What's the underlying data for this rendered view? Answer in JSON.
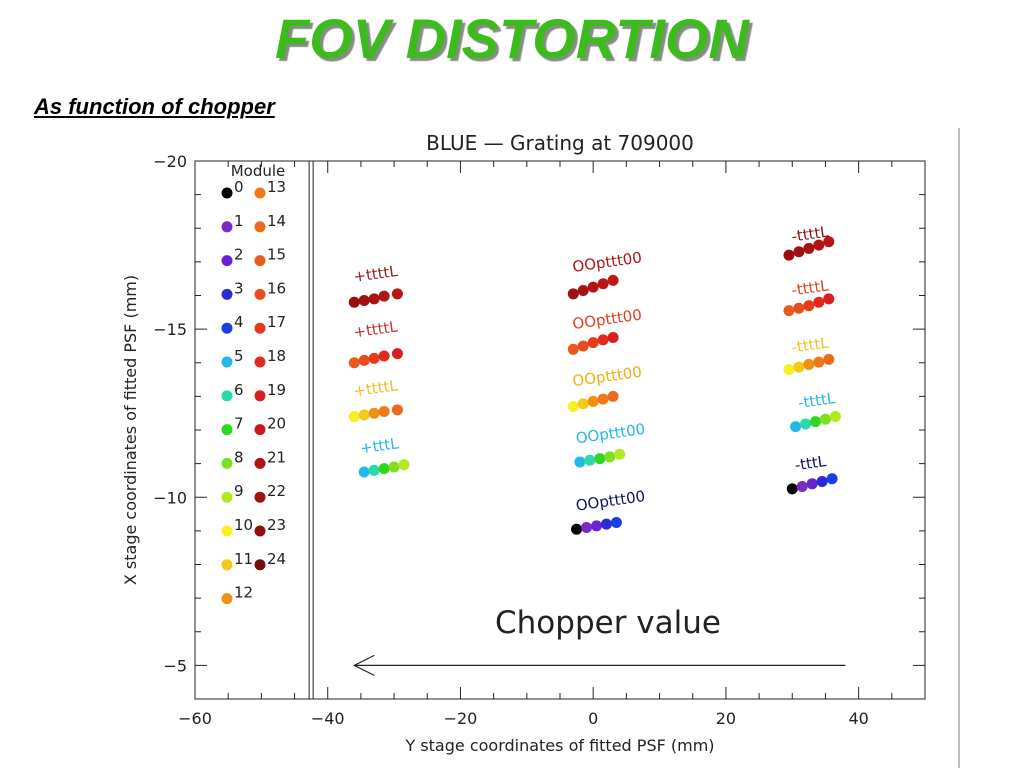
{
  "slide": {
    "title": "FOV DISTORTION",
    "subtitle": "As function of chopper",
    "title_color": "#3cbc1c"
  },
  "chart_data": {
    "type": "scatter",
    "title": "BLUE — Grating at 709000",
    "xlabel": "Y stage coordinates of fitted PSF (mm)",
    "ylabel": "X stage coordinates of fitted PSF (mm)",
    "xlim": [
      -60,
      50
    ],
    "ylim": [
      -20,
      -4
    ],
    "y_inverted": true,
    "x_ticks": [
      -60,
      -40,
      -20,
      0,
      20,
      40
    ],
    "x_tick_labels": [
      "−60",
      "−40",
      "−20",
      "0",
      "20",
      "40"
    ],
    "y_ticks": [
      -20,
      -15,
      -10,
      -5
    ],
    "y_tick_labels": [
      "−20",
      "−15",
      "−10",
      "−5"
    ],
    "separator_x": -42.5,
    "annotation": {
      "text": "Chopper value",
      "arrow": {
        "from_x": 38,
        "to_x": -36,
        "y": -5
      }
    },
    "legend": {
      "title": "Module",
      "placement": "left",
      "entries": [
        {
          "label": "0",
          "color": "#000000"
        },
        {
          "label": "1",
          "color": "#7a2bc4"
        },
        {
          "label": "2",
          "color": "#6a22d0"
        },
        {
          "label": "3",
          "color": "#2a2ad8"
        },
        {
          "label": "4",
          "color": "#1a3ee8"
        },
        {
          "label": "5",
          "color": "#22b8e8"
        },
        {
          "label": "6",
          "color": "#2ad8a8"
        },
        {
          "label": "7",
          "color": "#2ad820"
        },
        {
          "label": "8",
          "color": "#7ae020"
        },
        {
          "label": "9",
          "color": "#b4e820"
        },
        {
          "label": "10",
          "color": "#f8f020"
        },
        {
          "label": "11",
          "color": "#f4c818"
        },
        {
          "label": "12",
          "color": "#f09010"
        },
        {
          "label": "13",
          "color": "#f07818"
        },
        {
          "label": "14",
          "color": "#ec6a1e"
        },
        {
          "label": "15",
          "color": "#ea5a1c"
        },
        {
          "label": "16",
          "color": "#e84c1c"
        },
        {
          "label": "17",
          "color": "#e83a18"
        },
        {
          "label": "18",
          "color": "#e02a1c"
        },
        {
          "label": "19",
          "color": "#d81e1e"
        },
        {
          "label": "20",
          "color": "#c81818"
        },
        {
          "label": "21",
          "color": "#b01414"
        },
        {
          "label": "22",
          "color": "#a01212"
        },
        {
          "label": "23",
          "color": "#901010"
        },
        {
          "label": "24",
          "color": "#7a0c0c"
        }
      ]
    },
    "groups": [
      {
        "label_text": "+ttttL",
        "label_color": "#9a2020",
        "label_x": -36,
        "label_y": -16.4,
        "points": [
          {
            "x": -36,
            "y": -15.8,
            "c": "#9a0c0c"
          },
          {
            "x": -34.5,
            "y": -15.85,
            "c": "#a01010"
          },
          {
            "x": -33,
            "y": -15.9,
            "c": "#a81212"
          },
          {
            "x": -31.5,
            "y": -15.98,
            "c": "#b01414"
          },
          {
            "x": -29.5,
            "y": -16.05,
            "c": "#b81616"
          }
        ]
      },
      {
        "label_text": "+ttttL",
        "label_color": "#c83030",
        "label_x": -36,
        "label_y": -14.75,
        "points": [
          {
            "x": -36,
            "y": -14.0,
            "c": "#ea5a1c"
          },
          {
            "x": -34.5,
            "y": -14.07,
            "c": "#e84c1c"
          },
          {
            "x": -33,
            "y": -14.13,
            "c": "#e83a18"
          },
          {
            "x": -31.5,
            "y": -14.2,
            "c": "#e02a1c"
          },
          {
            "x": -29.5,
            "y": -14.27,
            "c": "#d81e1e"
          }
        ]
      },
      {
        "label_text": "+ttttL",
        "label_color": "#f0c020",
        "label_x": -36,
        "label_y": -13.0,
        "points": [
          {
            "x": -36,
            "y": -12.4,
            "c": "#f8f020"
          },
          {
            "x": -34.5,
            "y": -12.45,
            "c": "#f4c818"
          },
          {
            "x": -33,
            "y": -12.5,
            "c": "#f09010"
          },
          {
            "x": -31.5,
            "y": -12.55,
            "c": "#f07818"
          },
          {
            "x": -29.5,
            "y": -12.6,
            "c": "#ec6a1e"
          }
        ]
      },
      {
        "label_text": "+tttL",
        "label_color": "#22b8e8",
        "label_x": -35,
        "label_y": -11.3,
        "points": [
          {
            "x": -34.5,
            "y": -10.75,
            "c": "#22b8e8"
          },
          {
            "x": -33,
            "y": -10.8,
            "c": "#2ad8a8"
          },
          {
            "x": -31.5,
            "y": -10.85,
            "c": "#2ad820"
          },
          {
            "x": -30,
            "y": -10.9,
            "c": "#7ae020"
          },
          {
            "x": -28.5,
            "y": -10.97,
            "c": "#b4e820"
          }
        ]
      },
      {
        "label_text": "OOpttt00",
        "label_color": "#b01414",
        "label_x": -3,
        "label_y": -16.7,
        "points": [
          {
            "x": -3,
            "y": -16.05,
            "c": "#a01010"
          },
          {
            "x": -1.5,
            "y": -16.15,
            "c": "#a81212"
          },
          {
            "x": 0,
            "y": -16.25,
            "c": "#b01414"
          },
          {
            "x": 1.5,
            "y": -16.35,
            "c": "#b81616"
          },
          {
            "x": 3,
            "y": -16.45,
            "c": "#c01818"
          }
        ]
      },
      {
        "label_text": "OOpttt00",
        "label_color": "#e04020",
        "label_x": -3,
        "label_y": -15.0,
        "points": [
          {
            "x": -3,
            "y": -14.4,
            "c": "#ea5a1c"
          },
          {
            "x": -1.5,
            "y": -14.5,
            "c": "#e84c1c"
          },
          {
            "x": 0,
            "y": -14.6,
            "c": "#e83a18"
          },
          {
            "x": 1.5,
            "y": -14.68,
            "c": "#e02a1c"
          },
          {
            "x": 3,
            "y": -14.75,
            "c": "#d81e1e"
          }
        ]
      },
      {
        "label_text": "OOpttt00",
        "label_color": "#f0b010",
        "label_x": -3,
        "label_y": -13.3,
        "points": [
          {
            "x": -3,
            "y": -12.7,
            "c": "#f8f020"
          },
          {
            "x": -1.5,
            "y": -12.78,
            "c": "#f4c818"
          },
          {
            "x": 0,
            "y": -12.85,
            "c": "#f09010"
          },
          {
            "x": 1.5,
            "y": -12.92,
            "c": "#f07818"
          },
          {
            "x": 3,
            "y": -13.0,
            "c": "#ec6a1e"
          }
        ]
      },
      {
        "label_text": "OOpttt00",
        "label_color": "#22b8e8",
        "label_x": -2.5,
        "label_y": -11.6,
        "points": [
          {
            "x": -2,
            "y": -11.05,
            "c": "#22b8e8"
          },
          {
            "x": -0.5,
            "y": -11.1,
            "c": "#2ad8a8"
          },
          {
            "x": 1,
            "y": -11.15,
            "c": "#2ad820"
          },
          {
            "x": 2.5,
            "y": -11.2,
            "c": "#7ae020"
          },
          {
            "x": 4,
            "y": -11.28,
            "c": "#b4e820"
          }
        ]
      },
      {
        "label_text": "OOpttt00",
        "label_color": "#101060",
        "label_x": -2.5,
        "label_y": -9.6,
        "points": [
          {
            "x": -2.5,
            "y": -9.05,
            "c": "#000000"
          },
          {
            "x": -1,
            "y": -9.1,
            "c": "#7a2bc4"
          },
          {
            "x": 0.5,
            "y": -9.15,
            "c": "#6a22d0"
          },
          {
            "x": 2,
            "y": -9.2,
            "c": "#2a2ad8"
          },
          {
            "x": 3.5,
            "y": -9.25,
            "c": "#1a3ee8"
          }
        ]
      },
      {
        "label_text": "-ttttL",
        "label_color": "#901010",
        "label_x": 30,
        "label_y": -17.6,
        "points": [
          {
            "x": 29.5,
            "y": -17.2,
            "c": "#9a0c0c"
          },
          {
            "x": 31,
            "y": -17.3,
            "c": "#a01010"
          },
          {
            "x": 32.5,
            "y": -17.4,
            "c": "#a81212"
          },
          {
            "x": 34,
            "y": -17.5,
            "c": "#b01414"
          },
          {
            "x": 35.5,
            "y": -17.6,
            "c": "#b81616"
          }
        ]
      },
      {
        "label_text": "-ttttL",
        "label_color": "#e04020",
        "label_x": 30,
        "label_y": -16.0,
        "points": [
          {
            "x": 29.5,
            "y": -15.55,
            "c": "#ea5a1c"
          },
          {
            "x": 31,
            "y": -15.62,
            "c": "#e84c1c"
          },
          {
            "x": 32.5,
            "y": -15.7,
            "c": "#e83a18"
          },
          {
            "x": 34,
            "y": -15.8,
            "c": "#e02a1c"
          },
          {
            "x": 35.5,
            "y": -15.9,
            "c": "#d81e1e"
          }
        ]
      },
      {
        "label_text": "-ttttL",
        "label_color": "#f0c020",
        "label_x": 30,
        "label_y": -14.3,
        "points": [
          {
            "x": 29.5,
            "y": -13.8,
            "c": "#f8f020"
          },
          {
            "x": 31,
            "y": -13.87,
            "c": "#f4c818"
          },
          {
            "x": 32.5,
            "y": -13.95,
            "c": "#f09010"
          },
          {
            "x": 34,
            "y": -14.02,
            "c": "#f07818"
          },
          {
            "x": 35.5,
            "y": -14.1,
            "c": "#ec6a1e"
          }
        ]
      },
      {
        "label_text": "-ttttL",
        "label_color": "#22b8e8",
        "label_x": 31,
        "label_y": -12.65,
        "points": [
          {
            "x": 30.5,
            "y": -12.1,
            "c": "#22b8e8"
          },
          {
            "x": 32,
            "y": -12.18,
            "c": "#2ad8a8"
          },
          {
            "x": 33.5,
            "y": -12.25,
            "c": "#2ad820"
          },
          {
            "x": 35,
            "y": -12.32,
            "c": "#7ae020"
          },
          {
            "x": 36.5,
            "y": -12.4,
            "c": "#b4e820"
          }
        ]
      },
      {
        "label_text": "-tttL",
        "label_color": "#101060",
        "label_x": 30.5,
        "label_y": -10.8,
        "points": [
          {
            "x": 30,
            "y": -10.25,
            "c": "#000000"
          },
          {
            "x": 31.5,
            "y": -10.32,
            "c": "#7a2bc4"
          },
          {
            "x": 33,
            "y": -10.4,
            "c": "#6a22d0"
          },
          {
            "x": 34.5,
            "y": -10.47,
            "c": "#2a2ad8"
          },
          {
            "x": 36,
            "y": -10.55,
            "c": "#1a3ee8"
          }
        ]
      }
    ]
  }
}
